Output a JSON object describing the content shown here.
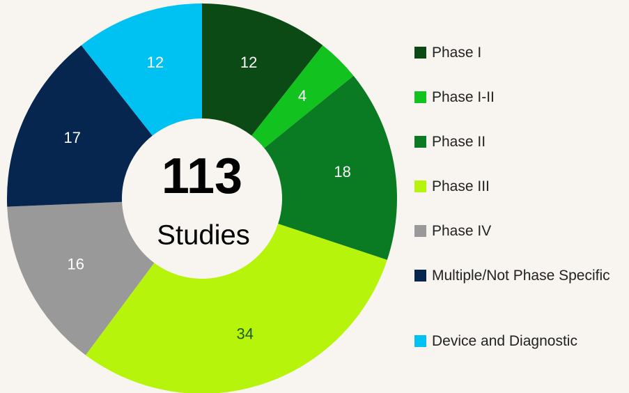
{
  "chart_data": {
    "type": "donut",
    "center_value": 113,
    "center_label": "Studies",
    "categories": [
      "Phase I",
      "Phase I-II",
      "Phase II",
      "Phase III",
      "Phase IV",
      "Multiple/Not Phase Specific",
      "Device and Diagnostic"
    ],
    "values": [
      12,
      4,
      18,
      34,
      16,
      17,
      12
    ],
    "colors": [
      "#0b4a14",
      "#12c21f",
      "#0a7b23",
      "#b6f40b",
      "#999999",
      "#062650",
      "#00c2f2"
    ],
    "label_colors": [
      "#ffffff",
      "#ffffff",
      "#ffffff",
      "#1f5c00",
      "#ffffff",
      "#ffffff",
      "#ffffff"
    ],
    "legend": "right"
  }
}
